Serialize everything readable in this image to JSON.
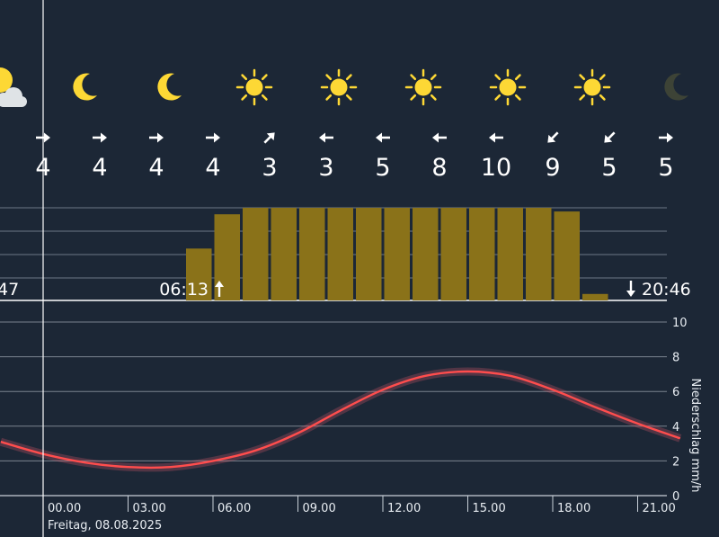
{
  "chart_data": {
    "type": "weather-meteogram",
    "date_label": "Freitag, 08.08.2025",
    "time_ticks": [
      "00.00",
      "03.00",
      "06.00",
      "09.00",
      "12.00",
      "15.00",
      "18.00",
      "21.00"
    ],
    "weather_icons": [
      "sun-cloud-icon",
      "moon-icon",
      "moon-icon",
      "sun-icon",
      "sun-icon",
      "sun-icon",
      "sun-icon",
      "sun-icon",
      "moon-icon"
    ],
    "wind": {
      "directions": [
        "right",
        "right",
        "right",
        "right",
        "up-right",
        "left",
        "left",
        "left",
        "left",
        "down-left",
        "down-left",
        "right"
      ],
      "speeds": [
        "4",
        "4",
        "4",
        "4",
        "3",
        "3",
        "5",
        "8",
        "10",
        "9",
        "5",
        "5"
      ]
    },
    "sunshine": {
      "sunrise": "06:13",
      "sunset": "20:46",
      "prev_sunset_fragment": "47",
      "hours": [
        5.5,
        6.5,
        7.5,
        8.5,
        9.5,
        10.5,
        11.5,
        12.5,
        13.5,
        14.5,
        15.5,
        16.5,
        17.5,
        18.5,
        19.5
      ],
      "fraction": [
        0.56,
        0.93,
        1.0,
        1.0,
        1.0,
        1.0,
        1.0,
        1.0,
        1.0,
        1.0,
        1.0,
        1.0,
        1.0,
        0.96,
        0.07
      ]
    },
    "precipitation_axis": {
      "label": "Niederschlag mm/h",
      "ticks": [
        "0",
        "2",
        "4",
        "6",
        "8",
        "10"
      ],
      "ylim": [
        0,
        10
      ]
    },
    "series": [
      {
        "x": [
          -1.5,
          0,
          1.5,
          3,
          4.5,
          6,
          7.5,
          9,
          10.5,
          12,
          13.5,
          15,
          16.5,
          18,
          19.5,
          21,
          22.5
        ],
        "y": [
          3.1,
          2.4,
          1.9,
          1.65,
          1.65,
          2.0,
          2.6,
          3.6,
          4.9,
          6.1,
          6.9,
          7.15,
          6.9,
          6.1,
          5.1,
          4.15,
          3.3
        ]
      }
    ],
    "colors": {
      "sunshine_bar": "#8a7219",
      "line": "#ff4d4d",
      "background": "#1c2736",
      "grid": "#c8d0d8"
    }
  }
}
